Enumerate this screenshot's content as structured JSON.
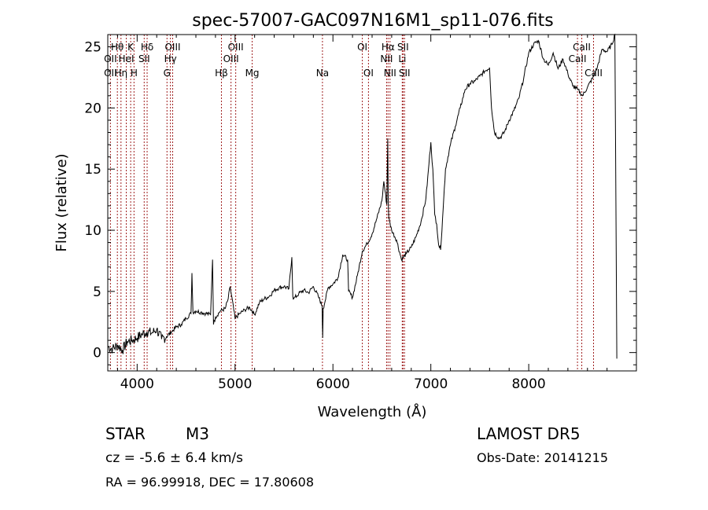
{
  "chart_data": {
    "type": "line",
    "title": "spec-57007-GAC097N16M1_sp11-076.fits",
    "xlabel": "Wavelength (Å)",
    "ylabel": "Flux (relative)",
    "xlim": [
      3700,
      9100
    ],
    "ylim": [
      -1.5,
      26
    ],
    "x_ticks": [
      4000,
      5000,
      6000,
      7000,
      8000
    ],
    "y_ticks": [
      0,
      5,
      10,
      15,
      20,
      25
    ],
    "grid": false,
    "series": [
      {
        "x": [
          3700,
          3750,
          3800,
          3850,
          3900,
          3950,
          4000,
          4050,
          4100,
          4150,
          4200,
          4250,
          4300,
          4350,
          4400,
          4450,
          4500,
          4550,
          4560,
          4570,
          4600,
          4650,
          4700,
          4750,
          4770,
          4780,
          4800,
          4850,
          4900,
          4930,
          4950,
          5000,
          5050,
          5100,
          5150,
          5200,
          5250,
          5300,
          5350,
          5400,
          5450,
          5500,
          5550,
          5580,
          5590,
          5600,
          5650,
          5700,
          5750,
          5800,
          5850,
          5890,
          5895,
          5900,
          5920,
          5950,
          6000,
          6050,
          6100,
          6150,
          6160,
          6200,
          6250,
          6300,
          6350,
          6400,
          6450,
          6500,
          6520,
          6550,
          6560,
          6565,
          6570,
          6600,
          6650,
          6700,
          6750,
          6800,
          6850,
          6900,
          6950,
          7000,
          7020,
          7040,
          7060,
          7080,
          7100,
          7120,
          7150,
          7200,
          7250,
          7300,
          7350,
          7400,
          7450,
          7500,
          7550,
          7600,
          7620,
          7650,
          7700,
          7750,
          7800,
          7850,
          7900,
          7950,
          8000,
          8050,
          8100,
          8150,
          8200,
          8250,
          8300,
          8350,
          8400,
          8450,
          8500,
          8550,
          8600,
          8650,
          8700,
          8750,
          8800,
          8850,
          8880,
          8900
        ],
        "y": [
          0.5,
          0.3,
          0.6,
          0.2,
          0.9,
          1.0,
          1.2,
          1.5,
          1.7,
          1.6,
          1.9,
          1.1,
          1.3,
          1.7,
          2.1,
          2.3,
          2.8,
          3.2,
          6.5,
          3.3,
          3.4,
          3.3,
          3.2,
          3.1,
          7.6,
          2.3,
          2.9,
          3.4,
          3.6,
          4.4,
          5.4,
          2.8,
          3.2,
          3.5,
          3.7,
          3.1,
          4.1,
          4.4,
          4.6,
          5.1,
          5.3,
          5.4,
          5.2,
          7.8,
          4.6,
          4.4,
          4.8,
          5.1,
          4.9,
          5.4,
          4.6,
          3.8,
          1.2,
          3.6,
          4.2,
          5.3,
          5.6,
          6.1,
          8.0,
          7.6,
          5.0,
          4.5,
          6.3,
          8.3,
          8.9,
          9.7,
          11.0,
          12.4,
          14.0,
          12.1,
          17.5,
          12.5,
          11.0,
          10.0,
          9.2,
          7.6,
          8.1,
          8.6,
          9.5,
          10.7,
          12.6,
          17.2,
          15.0,
          11.3,
          10.5,
          8.8,
          8.4,
          11.0,
          15.0,
          17.0,
          18.5,
          20.0,
          21.5,
          22.0,
          22.2,
          22.6,
          23.0,
          23.3,
          20.0,
          18.0,
          17.5,
          18.0,
          19.0,
          19.8,
          20.8,
          22.5,
          24.5,
          25.2,
          25.5,
          24.0,
          23.5,
          24.5,
          23.2,
          24.0,
          22.8,
          21.8,
          21.5,
          21.0,
          21.7,
          22.4,
          23.3,
          24.8,
          24.6,
          25.2,
          26.0,
          -0.5
        ]
      }
    ],
    "line_markers": [
      {
        "label": "Hθ",
        "x": 3798,
        "row": 0
      },
      {
        "label": "K",
        "x": 3934,
        "row": 0
      },
      {
        "label": "Hδ",
        "x": 4102,
        "row": 0
      },
      {
        "label": "OIII",
        "x": 4363,
        "row": 0
      },
      {
        "label": "OIII",
        "x": 5007,
        "row": 0
      },
      {
        "label": "OI",
        "x": 6300,
        "row": 0
      },
      {
        "label": "Hα",
        "x": 6563,
        "row": 0
      },
      {
        "label": "SII",
        "x": 6716,
        "row": 0
      },
      {
        "label": "CaII",
        "x": 8542,
        "row": 0
      },
      {
        "label": "OII",
        "x": 3727,
        "row": 1
      },
      {
        "label": "HeI",
        "x": 3889,
        "row": 1
      },
      {
        "label": "SII",
        "x": 4072,
        "row": 1
      },
      {
        "label": "Hγ",
        "x": 4340,
        "row": 1
      },
      {
        "label": "OIII",
        "x": 4959,
        "row": 1
      },
      {
        "label": "NII",
        "x": 6548,
        "row": 1
      },
      {
        "label": "Li",
        "x": 6708,
        "row": 1
      },
      {
        "label": "CaII",
        "x": 8498,
        "row": 1
      },
      {
        "label": "OII",
        "x": 3727,
        "row": 2
      },
      {
        "label": "Hη",
        "x": 3835,
        "row": 2
      },
      {
        "label": "H",
        "x": 3968,
        "row": 2
      },
      {
        "label": "G",
        "x": 4305,
        "row": 2
      },
      {
        "label": "Hβ",
        "x": 4861,
        "row": 2
      },
      {
        "label": "Mg",
        "x": 5175,
        "row": 2
      },
      {
        "label": "Na",
        "x": 5893,
        "row": 2
      },
      {
        "label": "OI",
        "x": 6363,
        "row": 2
      },
      {
        "label": "NII",
        "x": 6583,
        "row": 2
      },
      {
        "label": "SII",
        "x": 6731,
        "row": 2
      },
      {
        "label": "CaII",
        "x": 8662,
        "row": 2
      }
    ]
  },
  "info": {
    "object_class": "STAR",
    "subclass": "M3",
    "survey": "LAMOST DR5",
    "redshift": "cz = -5.6 ± 6.4 km/s",
    "obs_date": "Obs-Date: 20141215",
    "coords": "RA =  96.99918, DEC =  17.80608"
  },
  "colors": {
    "spectrum": "#000000",
    "marker": "#a02020",
    "axis": "#000000"
  }
}
